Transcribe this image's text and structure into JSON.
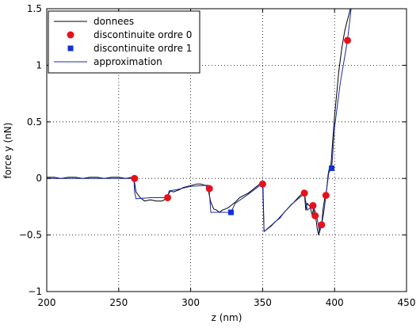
{
  "chart_data": {
    "type": "line",
    "xlabel": "z (nm)",
    "ylabel": "force y (nN)",
    "xlim": [
      200,
      450
    ],
    "ylim": [
      -1,
      1.5
    ],
    "x_ticks": [
      "200",
      "250",
      "300",
      "350",
      "400",
      "450"
    ],
    "y_ticks": [
      "−1",
      "−0.5",
      "0",
      "0.5",
      "1",
      "1.5"
    ],
    "grid": true,
    "legend_position": "top-left",
    "series": [
      {
        "name": "donnees",
        "style": "line",
        "color": "#000000",
        "x": [
          200,
          205,
          210,
          215,
          220,
          225,
          230,
          235,
          240,
          245,
          250,
          255,
          259,
          260.5,
          262,
          265,
          268,
          272,
          276,
          280,
          283,
          284,
          286,
          288,
          292,
          295,
          298,
          301,
          304,
          307,
          310,
          312,
          313,
          314,
          316,
          318,
          320,
          322,
          324,
          326,
          328,
          331,
          334,
          337,
          340,
          343,
          346,
          349,
          350.2,
          351,
          353,
          356,
          359,
          362,
          365,
          368,
          371,
          374,
          377,
          379,
          380,
          381,
          383,
          384.5,
          385.5,
          386.5,
          388,
          389,
          390,
          391,
          392,
          393.5,
          394.5,
          395.5,
          396.5,
          397.5,
          398.5,
          400,
          401.5,
          403,
          405,
          407,
          408.5,
          410,
          411
        ],
        "y": [
          0.01,
          0.01,
          0.0,
          0.01,
          0.01,
          0.0,
          0.01,
          0.01,
          0.0,
          0.01,
          0.01,
          0.0,
          0.01,
          0.0,
          -0.12,
          -0.17,
          -0.2,
          -0.19,
          -0.2,
          -0.2,
          -0.18,
          -0.15,
          -0.11,
          -0.12,
          -0.1,
          -0.08,
          -0.07,
          -0.06,
          -0.05,
          -0.05,
          -0.06,
          -0.08,
          -0.15,
          -0.21,
          -0.27,
          -0.28,
          -0.3,
          -0.28,
          -0.27,
          -0.26,
          -0.24,
          -0.21,
          -0.17,
          -0.15,
          -0.13,
          -0.1,
          -0.07,
          -0.04,
          -0.05,
          -0.47,
          -0.45,
          -0.42,
          -0.38,
          -0.35,
          -0.3,
          -0.26,
          -0.22,
          -0.18,
          -0.14,
          -0.13,
          -0.28,
          -0.22,
          -0.25,
          -0.33,
          -0.25,
          -0.3,
          -0.45,
          -0.5,
          -0.4,
          -0.41,
          -0.27,
          -0.15,
          -0.1,
          0.03,
          0.1,
          0.12,
          0.3,
          0.55,
          0.75,
          0.95,
          1.15,
          1.3,
          1.38,
          1.45,
          1.5
        ]
      },
      {
        "name": "discontinuite ordre 0",
        "style": "marker-circle",
        "color": "#e8101a",
        "x": [
          261,
          284,
          313,
          350,
          379,
          385,
          386.5,
          391,
          394,
          409
        ],
        "y": [
          0.0,
          -0.17,
          -0.09,
          -0.05,
          -0.13,
          -0.24,
          -0.33,
          -0.41,
          -0.15,
          1.22
        ]
      },
      {
        "name": "discontinuite ordre 1",
        "style": "marker-square",
        "color": "#1030d8",
        "x": [
          328,
          398
        ],
        "y": [
          -0.3,
          0.09
        ]
      },
      {
        "name": "approximation",
        "style": "line",
        "color": "#1a2aa0",
        "x": [
          200,
          260.5,
          261,
          262,
          272,
          284,
          285,
          290,
          300,
          312,
          313,
          314,
          328,
          331,
          340,
          349.5,
          350,
          351,
          360,
          370,
          378.5,
          379,
          381,
          385,
          386,
          388,
          389.5,
          391,
          392.5,
          394,
          396,
          398,
          400,
          404,
          409,
          411.5
        ],
        "y": [
          0.0,
          0.0,
          -0.12,
          -0.18,
          -0.17,
          -0.17,
          -0.11,
          -0.1,
          -0.07,
          -0.06,
          -0.12,
          -0.3,
          -0.3,
          -0.22,
          -0.14,
          -0.05,
          -0.05,
          -0.47,
          -0.37,
          -0.23,
          -0.14,
          -0.13,
          -0.28,
          -0.24,
          -0.33,
          -0.36,
          -0.48,
          -0.41,
          -0.3,
          -0.15,
          0.05,
          0.09,
          0.45,
          0.85,
          1.22,
          1.5
        ]
      }
    ]
  }
}
